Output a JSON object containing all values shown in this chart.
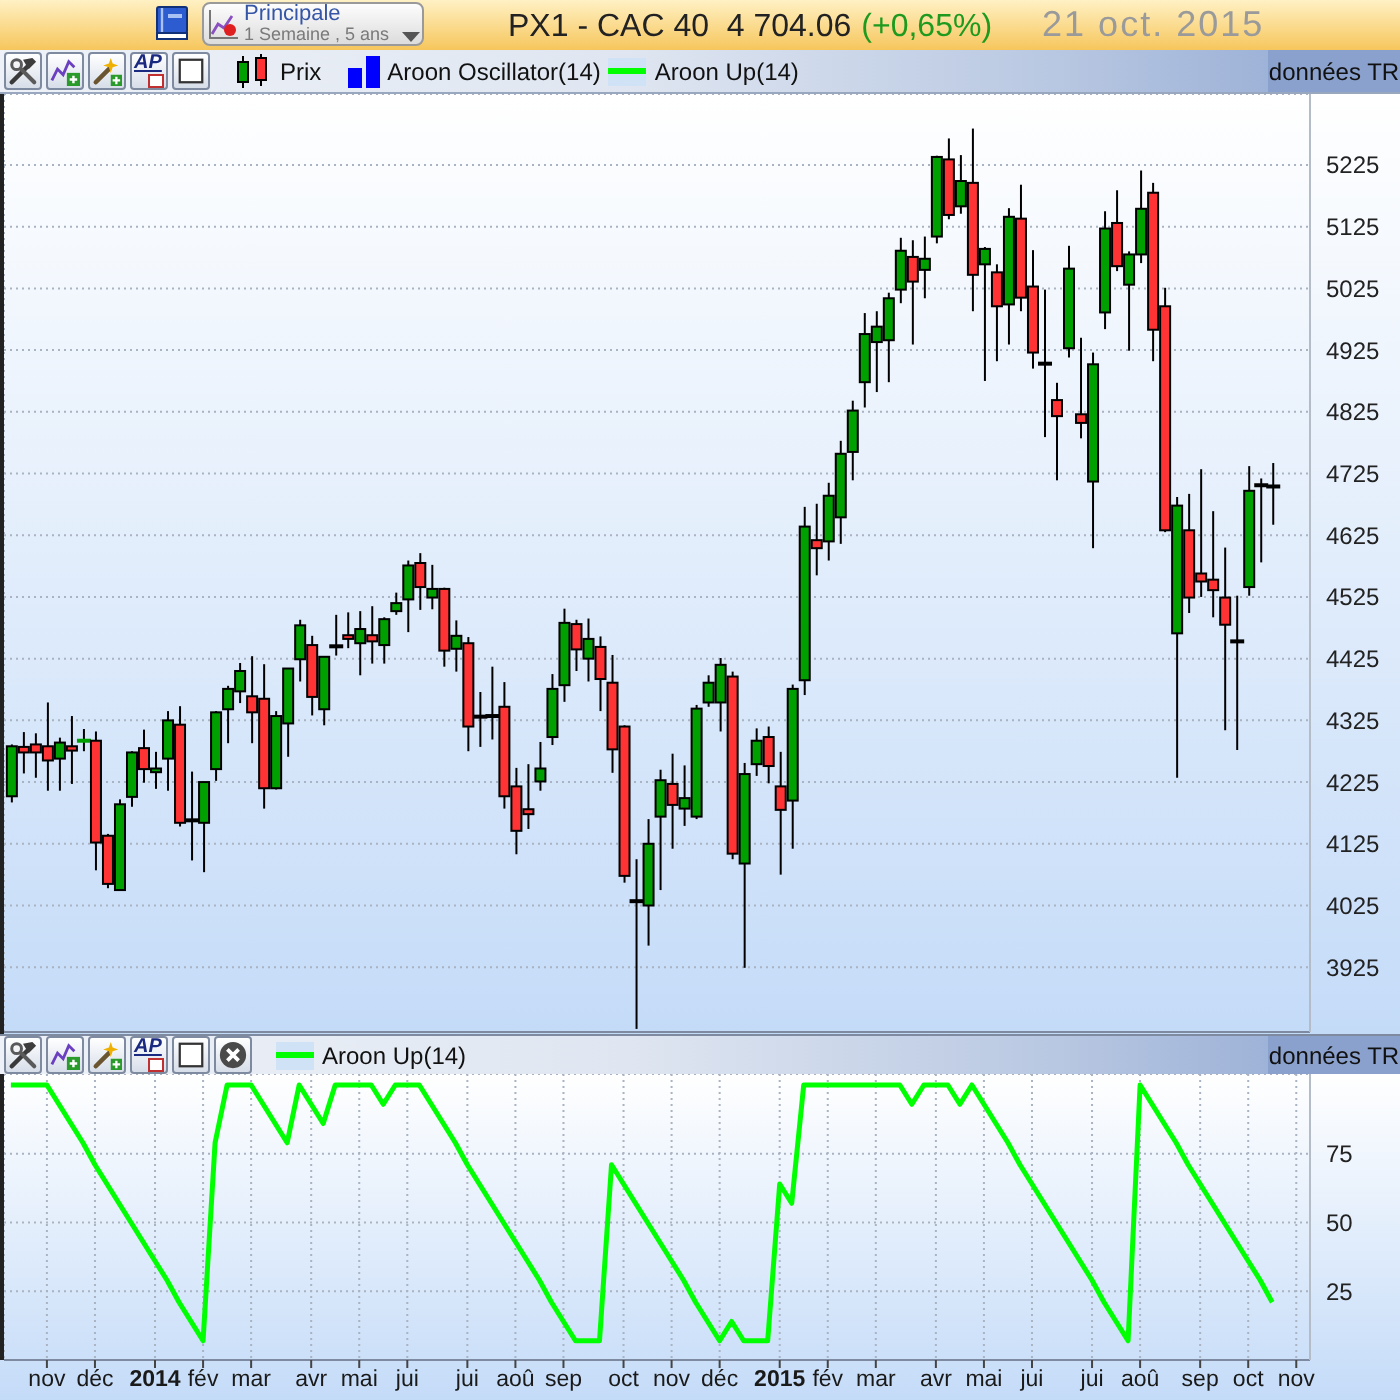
{
  "chart_data": [
    {
      "type": "candlestick",
      "title": "PX1 - CAC 40  4 704.06",
      "subtitle": "21 oct. 2015",
      "annotations": [
        "(+0,65%)",
        "Principale",
        "1 Semaine , 5 ans",
        "AP",
        "Aroon Oscillator(14)",
        "données TR"
      ],
      "x": [
        "2013-10-14",
        "2013-10-21",
        "2013-10-28",
        "2013-11-04",
        "2013-11-11",
        "2013-11-18",
        "2013-11-25",
        "2013-12-02",
        "2013-12-09",
        "2013-12-16",
        "2013-12-23",
        "2013-12-30",
        "2014-01-06",
        "2014-01-13",
        "2014-01-20",
        "2014-01-27",
        "2014-02-03",
        "2014-02-10",
        "2014-02-17",
        "2014-02-24",
        "2014-03-03",
        "2014-03-10",
        "2014-03-17",
        "2014-03-24",
        "2014-03-31",
        "2014-04-07",
        "2014-04-14",
        "2014-04-21",
        "2014-04-28",
        "2014-05-05",
        "2014-05-12",
        "2014-05-19",
        "2014-05-26",
        "2014-06-02",
        "2014-06-09",
        "2014-06-16",
        "2014-06-23",
        "2014-06-30",
        "2014-07-07",
        "2014-07-14",
        "2014-07-21",
        "2014-07-28",
        "2014-08-04",
        "2014-08-11",
        "2014-08-18",
        "2014-08-25",
        "2014-09-01",
        "2014-09-08",
        "2014-09-15",
        "2014-09-22",
        "2014-09-29",
        "2014-10-06",
        "2014-10-13",
        "2014-10-20",
        "2014-10-27",
        "2014-11-03",
        "2014-11-10",
        "2014-11-17",
        "2014-11-24",
        "2014-12-01",
        "2014-12-08",
        "2014-12-15",
        "2014-12-22",
        "2014-12-29",
        "2015-01-05",
        "2015-01-12",
        "2015-01-19",
        "2015-01-26",
        "2015-02-02",
        "2015-02-09",
        "2015-02-16",
        "2015-02-23",
        "2015-03-02",
        "2015-03-09",
        "2015-03-16",
        "2015-03-23",
        "2015-03-30",
        "2015-04-06",
        "2015-04-13",
        "2015-04-20",
        "2015-04-27",
        "2015-05-04",
        "2015-05-11",
        "2015-05-18",
        "2015-05-25",
        "2015-06-01",
        "2015-06-08",
        "2015-06-15",
        "2015-06-22",
        "2015-06-29",
        "2015-07-06",
        "2015-07-13",
        "2015-07-20",
        "2015-07-27",
        "2015-08-03",
        "2015-08-10",
        "2015-08-17",
        "2015-08-24",
        "2015-08-31",
        "2015-09-07",
        "2015-09-14",
        "2015-09-21",
        "2015-09-28",
        "2015-10-05",
        "2015-10-12",
        "2015-10-19"
      ],
      "series": [
        {
          "name": "Prix",
          "ohlc": [
            [
              4202,
              4286,
              4192,
              4283
            ],
            [
              4282,
              4306,
              4239,
              4273
            ],
            [
              4286,
              4304,
              4232,
              4273
            ],
            [
              4283,
              4354,
              4211,
              4260
            ],
            [
              4263,
              4297,
              4211,
              4289
            ],
            [
              4283,
              4332,
              4222,
              4276
            ],
            [
              4291,
              4311,
              4275,
              4293
            ],
            [
              4292,
              4307,
              4082,
              4127
            ],
            [
              4138,
              4141,
              4053,
              4060
            ],
            [
              4050,
              4197,
              4050,
              4189
            ],
            [
              4201,
              4275,
              4185,
              4273
            ],
            [
              4280,
              4310,
              4224,
              4246
            ],
            [
              4241,
              4274,
              4214,
              4247
            ],
            [
              4263,
              4340,
              4211,
              4325
            ],
            [
              4318,
              4348,
              4153,
              4159
            ],
            [
              4163,
              4242,
              4098,
              4163
            ],
            [
              4159,
              4225,
              4079,
              4225
            ],
            [
              4246,
              4340,
              4227,
              4338
            ],
            [
              4343,
              4381,
              4288,
              4376
            ],
            [
              4372,
              4418,
              4353,
              4405
            ],
            [
              4364,
              4429,
              4288,
              4338
            ],
            [
              4360,
              4416,
              4182,
              4215
            ],
            [
              4215,
              4340,
              4213,
              4332
            ],
            [
              4320,
              4409,
              4266,
              4409
            ],
            [
              4424,
              4488,
              4388,
              4479
            ],
            [
              4447,
              4462,
              4333,
              4363
            ],
            [
              4343,
              4428,
              4317,
              4428
            ],
            [
              4445,
              4496,
              4430,
              4445
            ],
            [
              4463,
              4500,
              4442,
              4457
            ],
            [
              4450,
              4502,
              4398,
              4473
            ],
            [
              4463,
              4510,
              4417,
              4453
            ],
            [
              4447,
              4492,
              4417,
              4489
            ],
            [
              4502,
              4532,
              4496,
              4515
            ],
            [
              4521,
              4584,
              4468,
              4576
            ],
            [
              4580,
              4596,
              4504,
              4541
            ],
            [
              4524,
              4577,
              4505,
              4538
            ],
            [
              4538,
              4540,
              4412,
              4438
            ],
            [
              4441,
              4487,
              4404,
              4462
            ],
            [
              4450,
              4460,
              4275,
              4315
            ],
            [
              4331,
              4371,
              4282,
              4331
            ],
            [
              4332,
              4412,
              4294,
              4332
            ],
            [
              4347,
              4387,
              4182,
              4202
            ],
            [
              4218,
              4248,
              4108,
              4146
            ],
            [
              4181,
              4254,
              4149,
              4173
            ],
            [
              4226,
              4290,
              4211,
              4247
            ],
            [
              4298,
              4400,
              4285,
              4376
            ],
            [
              4382,
              4506,
              4355,
              4483
            ],
            [
              4481,
              4488,
              4405,
              4440
            ],
            [
              4425,
              4490,
              4388,
              4457
            ],
            [
              4444,
              4461,
              4340,
              4392
            ],
            [
              4386,
              4431,
              4240,
              4278
            ],
            [
              4315,
              4317,
              4062,
              4073
            ],
            [
              4032,
              4100,
              3825,
              4032
            ],
            [
              4025,
              4165,
              3960,
              4125
            ],
            [
              4169,
              4245,
              4050,
              4228
            ],
            [
              4222,
              4271,
              4117,
              4188
            ],
            [
              4182,
              4252,
              4154,
              4199
            ],
            [
              4169,
              4350,
              4165,
              4344
            ],
            [
              4354,
              4398,
              4347,
              4386
            ],
            [
              4354,
              4426,
              4307,
              4415
            ],
            [
              4396,
              4404,
              4100,
              4109
            ],
            [
              4093,
              4256,
              3924,
              4238
            ],
            [
              4254,
              4312,
              4235,
              4292
            ],
            [
              4298,
              4315,
              4223,
              4251
            ],
            [
              4218,
              4274,
              4075,
              4180
            ],
            [
              4195,
              4383,
              4117,
              4376
            ],
            [
              4390,
              4671,
              4366,
              4639
            ],
            [
              4617,
              4676,
              4560,
              4604
            ],
            [
              4615,
              4710,
              4584,
              4689
            ],
            [
              4654,
              4778,
              4611,
              4757
            ],
            [
              4760,
              4843,
              4714,
              4827
            ],
            [
              4873,
              4985,
              4832,
              4951
            ],
            [
              4938,
              4988,
              4857,
              4963
            ],
            [
              4941,
              5018,
              4873,
              5009
            ],
            [
              5023,
              5107,
              5001,
              5086
            ],
            [
              5076,
              5103,
              4934,
              5036
            ],
            [
              5055,
              5109,
              5009,
              5073
            ],
            [
              5109,
              5240,
              5098,
              5238
            ],
            [
              5234,
              5268,
              5137,
              5144
            ],
            [
              5158,
              5241,
              5146,
              5199
            ],
            [
              5196,
              5284,
              4988,
              5047
            ],
            [
              5064,
              5092,
              4875,
              5089
            ],
            [
              5051,
              5064,
              4907,
              4996
            ],
            [
              4999,
              5155,
              4934,
              5141
            ],
            [
              5138,
              5193,
              4988,
              5010
            ],
            [
              5028,
              5087,
              4895,
              4921
            ],
            [
              4903,
              5023,
              4784,
              4903
            ],
            [
              4844,
              4872,
              4714,
              4818
            ],
            [
              4928,
              5094,
              4913,
              5057
            ],
            [
              4821,
              4945,
              4782,
              4807
            ],
            [
              4712,
              4921,
              4604,
              4902
            ],
            [
              4986,
              5150,
              4959,
              5122
            ],
            [
              5131,
              5184,
              5053,
              5061
            ],
            [
              5031,
              5085,
              4924,
              5080
            ],
            [
              5080,
              5216,
              5066,
              5154
            ],
            [
              5180,
              5196,
              4907,
              4958
            ],
            [
              4996,
              5026,
              4630,
              4633
            ],
            [
              4466,
              4687,
              4232,
              4673
            ],
            [
              4633,
              4692,
              4499,
              4524
            ],
            [
              4563,
              4732,
              4525,
              4550
            ],
            [
              4553,
              4664,
              4492,
              4536
            ],
            [
              4524,
              4605,
              4309,
              4480
            ],
            [
              4453,
              4527,
              4277,
              4453
            ],
            [
              4541,
              4737,
              4527,
              4697
            ],
            [
              4706,
              4717,
              4581,
              4706
            ],
            [
              4704,
              4742,
              4642,
              4704
            ]
          ],
          "colors": [
            "#00a000",
            "#ff3333",
            "#ff3333",
            "#ff3333",
            "#00a000",
            "#ff3333",
            "#00a000",
            "#ff3333",
            "#ff3333",
            "#00a000",
            "#00a000",
            "#ff3333",
            "#00a000",
            "#00a000",
            "#ff3333",
            "#000000",
            "#00a000",
            "#00a000",
            "#00a000",
            "#00a000",
            "#ff3333",
            "#ff3333",
            "#00a000",
            "#00a000",
            "#00a000",
            "#ff3333",
            "#00a000",
            "#000000",
            "#ff3333",
            "#00a000",
            "#ff3333",
            "#00a000",
            "#00a000",
            "#00a000",
            "#ff3333",
            "#00a000",
            "#ff3333",
            "#00a000",
            "#ff3333",
            "#000000",
            "#000000",
            "#ff3333",
            "#ff3333",
            "#ff3333",
            "#00a000",
            "#00a000",
            "#00a000",
            "#ff3333",
            "#00a000",
            "#ff3333",
            "#ff3333",
            "#ff3333",
            "#000000",
            "#00a000",
            "#00a000",
            "#ff3333",
            "#00a000",
            "#00a000",
            "#00a000",
            "#00a000",
            "#ff3333",
            "#00a000",
            "#00a000",
            "#ff3333",
            "#ff3333",
            "#00a000",
            "#00a000",
            "#ff3333",
            "#00a000",
            "#00a000",
            "#00a000",
            "#00a000",
            "#00a000",
            "#00a000",
            "#00a000",
            "#ff3333",
            "#00a000",
            "#00a000",
            "#ff3333",
            "#00a000",
            "#ff3333",
            "#00a000",
            "#ff3333",
            "#00a000",
            "#ff3333",
            "#ff3333",
            "#000000",
            "#ff3333",
            "#00a000",
            "#ff3333",
            "#00a000",
            "#00a000",
            "#ff3333",
            "#00a000",
            "#00a000",
            "#ff3333",
            "#ff3333",
            "#00a000",
            "#ff3333",
            "#ff3333",
            "#ff3333",
            "#ff3333",
            "#000000",
            "#00a000",
            "#000000",
            "#000000"
          ]
        }
      ],
      "xlim": [
        "2013-10-10",
        "2015-11-10"
      ],
      "xticks": [
        {
          "value": "2013-11-04",
          "label": null
        },
        {
          "value": "2013-12-02",
          "label": null
        },
        {
          "value": "2014-01-06",
          "label": null
        },
        {
          "value": "2014-02-03",
          "label": null
        },
        {
          "value": "2014-03-03",
          "label": null
        },
        {
          "value": "2014-04-07",
          "label": null
        },
        {
          "value": "2014-05-05",
          "label": null
        },
        {
          "value": "2014-06-02",
          "label": null
        },
        {
          "value": "2014-07-07",
          "label": null
        },
        {
          "value": "2014-08-04",
          "label": null
        },
        {
          "value": "2014-09-01",
          "label": null
        },
        {
          "value": "2014-10-06",
          "label": null
        },
        {
          "value": "2014-11-03",
          "label": null
        },
        {
          "value": "2014-12-01",
          "label": null
        },
        {
          "value": "2015-01-05",
          "label": null
        },
        {
          "value": "2015-02-02",
          "label": null
        },
        {
          "value": "2015-03-02",
          "label": null
        },
        {
          "value": "2015-04-06",
          "label": null
        },
        {
          "value": "2015-05-04",
          "label": null
        },
        {
          "value": "2015-06-01",
          "label": null
        },
        {
          "value": "2015-07-06",
          "label": null
        },
        {
          "value": "2015-08-03",
          "label": null
        },
        {
          "value": "2015-09-07",
          "label": null
        },
        {
          "value": "2015-10-05",
          "label": null
        },
        {
          "value": "2015-11-02",
          "label": null
        }
      ],
      "ylim": [
        3820,
        5340
      ],
      "yticks": [
        3925,
        4025,
        4125,
        4225,
        4325,
        4425,
        4525,
        4625,
        4725,
        4825,
        4925,
        5025,
        5125,
        5225
      ],
      "grid": true,
      "legend": "top left",
      "tick_labels": "y"
    },
    {
      "type": "line",
      "annotations": [
        "AP",
        "données TR"
      ],
      "x": [
        "2013-10-14",
        "2013-10-21",
        "2013-10-28",
        "2013-11-04",
        "2013-11-11",
        "2013-11-18",
        "2013-11-25",
        "2013-12-02",
        "2013-12-09",
        "2013-12-16",
        "2013-12-23",
        "2013-12-30",
        "2014-01-06",
        "2014-01-13",
        "2014-01-20",
        "2014-01-27",
        "2014-02-03",
        "2014-02-10",
        "2014-02-17",
        "2014-02-24",
        "2014-03-03",
        "2014-03-10",
        "2014-03-17",
        "2014-03-24",
        "2014-03-31",
        "2014-04-07",
        "2014-04-14",
        "2014-04-21",
        "2014-04-28",
        "2014-05-05",
        "2014-05-12",
        "2014-05-19",
        "2014-05-26",
        "2014-06-02",
        "2014-06-09",
        "2014-06-16",
        "2014-06-23",
        "2014-06-30",
        "2014-07-07",
        "2014-07-14",
        "2014-07-21",
        "2014-07-28",
        "2014-08-04",
        "2014-08-11",
        "2014-08-18",
        "2014-08-25",
        "2014-09-01",
        "2014-09-08",
        "2014-09-15",
        "2014-09-22",
        "2014-09-29",
        "2014-10-06",
        "2014-10-13",
        "2014-10-20",
        "2014-10-27",
        "2014-11-03",
        "2014-11-10",
        "2014-11-17",
        "2014-11-24",
        "2014-12-01",
        "2014-12-08",
        "2014-12-15",
        "2014-12-22",
        "2014-12-29",
        "2015-01-05",
        "2015-01-12",
        "2015-01-19",
        "2015-01-26",
        "2015-02-02",
        "2015-02-09",
        "2015-02-16",
        "2015-02-23",
        "2015-03-02",
        "2015-03-09",
        "2015-03-16",
        "2015-03-23",
        "2015-03-30",
        "2015-04-06",
        "2015-04-13",
        "2015-04-20",
        "2015-04-27",
        "2015-05-04",
        "2015-05-11",
        "2015-05-18",
        "2015-05-25",
        "2015-06-01",
        "2015-06-08",
        "2015-06-15",
        "2015-06-22",
        "2015-06-29",
        "2015-07-06",
        "2015-07-13",
        "2015-07-20",
        "2015-07-27",
        "2015-08-03",
        "2015-08-10",
        "2015-08-17",
        "2015-08-24",
        "2015-08-31",
        "2015-09-07",
        "2015-09-14",
        "2015-09-21",
        "2015-09-28",
        "2015-10-05",
        "2015-10-12",
        "2015-10-19"
      ],
      "series": [
        {
          "name": "Aroon Up(14)",
          "color": "#00ff00",
          "values": [
            100,
            100,
            100,
            100,
            93,
            86,
            79,
            71,
            64,
            57,
            50,
            43,
            36,
            29,
            21,
            14,
            7,
            79,
            100,
            100,
            100,
            93,
            86,
            79,
            100,
            93,
            86,
            100,
            100,
            100,
            100,
            93,
            100,
            100,
            100,
            93,
            86,
            79,
            71,
            64,
            57,
            50,
            43,
            36,
            29,
            21,
            14,
            7,
            7,
            7,
            71,
            64,
            57,
            50,
            43,
            36,
            29,
            21,
            14,
            7,
            14,
            7,
            7,
            7,
            64,
            57,
            100,
            100,
            100,
            100,
            100,
            100,
            100,
            100,
            100,
            93,
            100,
            100,
            100,
            93,
            100,
            93,
            86,
            79,
            71,
            64,
            57,
            50,
            43,
            36,
            29,
            21,
            14,
            7,
            100,
            93,
            86,
            79,
            71,
            64,
            57,
            50,
            43,
            36,
            29,
            21
          ]
        }
      ],
      "xlim": [
        "2013-10-10",
        "2015-11-10"
      ],
      "xticks": [
        {
          "value": "2013-11-04",
          "label": "nov"
        },
        {
          "value": "2013-12-02",
          "label": "déc"
        },
        {
          "value": "2014-01-06",
          "label": "2014"
        },
        {
          "value": "2014-02-03",
          "label": "fév"
        },
        {
          "value": "2014-03-03",
          "label": "mar"
        },
        {
          "value": "2014-04-07",
          "label": "avr"
        },
        {
          "value": "2014-05-05",
          "label": "mai"
        },
        {
          "value": "2014-06-02",
          "label": "jui"
        },
        {
          "value": "2014-07-07",
          "label": "jui"
        },
        {
          "value": "2014-08-04",
          "label": "aoû"
        },
        {
          "value": "2014-09-01",
          "label": "sep"
        },
        {
          "value": "2014-10-06",
          "label": "oct"
        },
        {
          "value": "2014-11-03",
          "label": "nov"
        },
        {
          "value": "2014-12-01",
          "label": "déc"
        },
        {
          "value": "2015-01-05",
          "label": "2015"
        },
        {
          "value": "2015-02-02",
          "label": "fév"
        },
        {
          "value": "2015-03-02",
          "label": "mar"
        },
        {
          "value": "2015-04-06",
          "label": "avr"
        },
        {
          "value": "2015-05-04",
          "label": "mai"
        },
        {
          "value": "2015-06-01",
          "label": "jui"
        },
        {
          "value": "2015-07-06",
          "label": "jui"
        },
        {
          "value": "2015-08-03",
          "label": "aoû"
        },
        {
          "value": "2015-09-07",
          "label": "sep"
        },
        {
          "value": "2015-10-05",
          "label": "oct"
        },
        {
          "value": "2015-11-02",
          "label": "nov"
        }
      ],
      "ylim": [
        0,
        104
      ],
      "yticks": [
        25,
        50,
        75
      ],
      "grid": true,
      "legend": "top left"
    }
  ]
}
